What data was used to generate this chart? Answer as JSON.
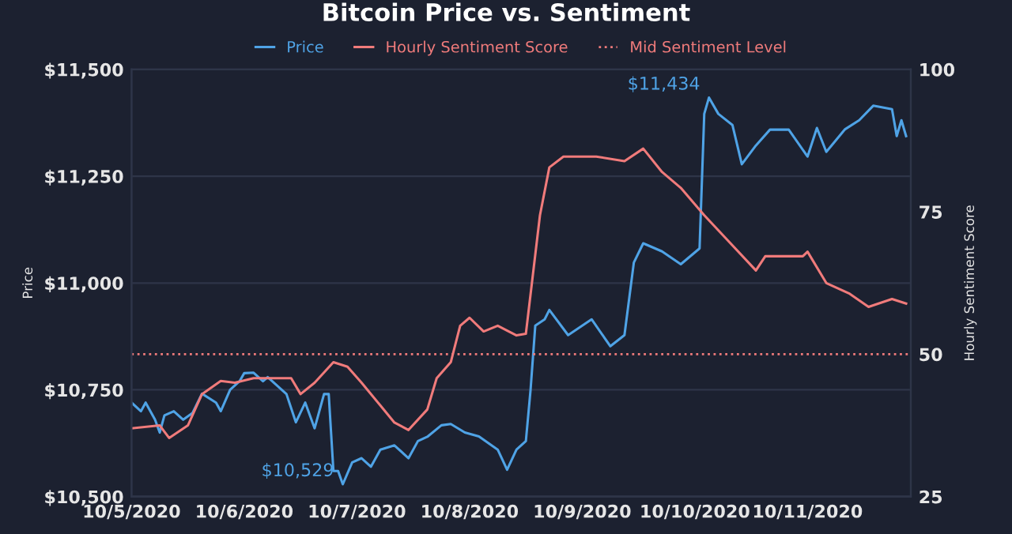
{
  "chart_data": {
    "type": "line",
    "title": "Bitcoin Price vs. Sentiment",
    "ylabel": "Price",
    "y2label": "Hourly Sentiment Score",
    "series": [
      {
        "name": "Price",
        "color": "#4fa3e6",
        "x": [
          "2020-10-05T00:00",
          "2020-10-05T02:00",
          "2020-10-05T03:00",
          "2020-10-05T05:00",
          "2020-10-05T06:00",
          "2020-10-05T07:00",
          "2020-10-05T09:00",
          "2020-10-05T11:00",
          "2020-10-05T13:00",
          "2020-10-05T15:00",
          "2020-10-05T18:00",
          "2020-10-05T19:00",
          "2020-10-05T21:00",
          "2020-10-05T23:00",
          "2020-10-06T00:00",
          "2020-10-06T02:00",
          "2020-10-06T04:00",
          "2020-10-06T05:00",
          "2020-10-06T09:00",
          "2020-10-06T11:00",
          "2020-10-06T13:00",
          "2020-10-06T15:00",
          "2020-10-06T17:00",
          "2020-10-06T18:00",
          "2020-10-06T19:00",
          "2020-10-06T20:00",
          "2020-10-06T21:00",
          "2020-10-06T23:00",
          "2020-10-07T01:00",
          "2020-10-07T03:00",
          "2020-10-07T05:00",
          "2020-10-07T08:00",
          "2020-10-07T11:00",
          "2020-10-07T13:00",
          "2020-10-07T15:00",
          "2020-10-07T18:00",
          "2020-10-07T20:00",
          "2020-10-07T23:00",
          "2020-10-08T02:00",
          "2020-10-08T06:00",
          "2020-10-08T08:00",
          "2020-10-08T10:00",
          "2020-10-08T12:00",
          "2020-10-08T13:00",
          "2020-10-08T14:00",
          "2020-10-08T16:00",
          "2020-10-08T17:00",
          "2020-10-08T21:00",
          "2020-10-09T02:00",
          "2020-10-09T06:00",
          "2020-10-09T09:00",
          "2020-10-09T11:00",
          "2020-10-09T13:00",
          "2020-10-09T17:00",
          "2020-10-09T21:00",
          "2020-10-10T01:00",
          "2020-10-10T02:00",
          "2020-10-10T03:00",
          "2020-10-10T05:00",
          "2020-10-10T08:00",
          "2020-10-10T10:00",
          "2020-10-10T13:00",
          "2020-10-10T16:00",
          "2020-10-10T20:00",
          "2020-10-11T00:00",
          "2020-10-11T02:00",
          "2020-10-11T04:00",
          "2020-10-11T08:00",
          "2020-10-11T11:00",
          "2020-10-11T14:00",
          "2020-10-11T18:00",
          "2020-10-11T19:00",
          "2020-10-11T20:00",
          "2020-10-11T21:00"
        ],
        "values": [
          10720,
          10700,
          10720,
          10680,
          10650,
          10690,
          10700,
          10680,
          10696,
          10741,
          10720,
          10700,
          10750,
          10770,
          10789,
          10790,
          10770,
          10780,
          10740,
          10674,
          10720,
          10660,
          10740,
          10740,
          10560,
          10560,
          10529,
          10580,
          10590,
          10570,
          10610,
          10620,
          10590,
          10630,
          10640,
          10667,
          10670,
          10650,
          10641,
          10610,
          10563,
          10610,
          10630,
          10750,
          10900,
          10915,
          10937,
          10878,
          10915,
          10852,
          10878,
          11048,
          11093,
          11074,
          11044,
          11081,
          11396,
          11434,
          11396,
          11370,
          11278,
          11322,
          11359,
          11359,
          11296,
          11363,
          11307,
          11360,
          11381,
          11415,
          11407,
          11344,
          11381,
          11344
        ]
      },
      {
        "name": "Hourly Sentiment Score",
        "color": "#f07b7b",
        "axis": "y2",
        "x": [
          "2020-10-05T00:00",
          "2020-10-05T06:00",
          "2020-10-05T08:00",
          "2020-10-05T12:00",
          "2020-10-05T15:00",
          "2020-10-05T19:00",
          "2020-10-05T22:00",
          "2020-10-06T02:00",
          "2020-10-06T06:00",
          "2020-10-06T10:00",
          "2020-10-06T12:00",
          "2020-10-06T15:00",
          "2020-10-06T19:00",
          "2020-10-06T22:00",
          "2020-10-07T01:00",
          "2020-10-07T05:00",
          "2020-10-07T08:00",
          "2020-10-07T11:00",
          "2020-10-07T15:00",
          "2020-10-07T17:00",
          "2020-10-07T20:00",
          "2020-10-07T22:00",
          "2020-10-08T00:00",
          "2020-10-08T03:00",
          "2020-10-08T06:00",
          "2020-10-08T10:00",
          "2020-10-08T12:00",
          "2020-10-08T15:00",
          "2020-10-08T17:00",
          "2020-10-08T20:00",
          "2020-10-09T03:00",
          "2020-10-09T09:00",
          "2020-10-09T13:00",
          "2020-10-09T17:00",
          "2020-10-09T21:00",
          "2020-10-10T02:00",
          "2020-10-10T07:00",
          "2020-10-10T13:00",
          "2020-10-10T15:00",
          "2020-10-10T23:00",
          "2020-10-11T00:00",
          "2020-10-11T04:00",
          "2020-10-11T09:00",
          "2020-10-11T13:00",
          "2020-10-11T18:00",
          "2020-10-11T21:00"
        ],
        "values": [
          37,
          37.5,
          35.3,
          37.5,
          43,
          45.3,
          45,
          45.8,
          45.8,
          45.8,
          43,
          45,
          48.6,
          47.8,
          45,
          41,
          38,
          36.7,
          40.3,
          45.8,
          48.6,
          55,
          56.4,
          54,
          55,
          53.3,
          53.6,
          74.4,
          82.8,
          84.7,
          84.7,
          83.9,
          86.1,
          82,
          79.2,
          74.4,
          70,
          64.7,
          67.2,
          67.2,
          68,
          62.5,
          60.6,
          58.3,
          59.7,
          58.9
        ]
      }
    ],
    "ref_lines": [
      {
        "axis": "y2",
        "value": 50,
        "label": "Mid Sentiment Level",
        "color": "#f07b7b",
        "line_style": "dotted"
      }
    ],
    "annotations": [
      {
        "text": "$10,529",
        "x": "2020-10-06T21:00",
        "y": 10529
      },
      {
        "text": "$11,434",
        "x": "2020-10-10T03:00",
        "y": 11434
      }
    ],
    "xlim": [
      "2020-10-05T00:00",
      "2020-10-11T22:00"
    ],
    "xticks": [
      {
        "value": "2020-10-05",
        "label": "10/5/2020"
      },
      {
        "value": "2020-10-06",
        "label": "10/6/2020"
      },
      {
        "value": "2020-10-07",
        "label": "10/7/2020"
      },
      {
        "value": "2020-10-08",
        "label": "10/8/2020"
      },
      {
        "value": "2020-10-09",
        "label": "10/9/2020"
      },
      {
        "value": "2020-10-10",
        "label": "10/10/2020"
      },
      {
        "value": "2020-10-11",
        "label": "10/11/2020"
      }
    ],
    "ylim": [
      10500,
      11500
    ],
    "yticks": [
      {
        "value": 10500,
        "label": "$10,500"
      },
      {
        "value": 10750,
        "label": "$10,750"
      },
      {
        "value": 11000,
        "label": "$11,000"
      },
      {
        "value": 11250,
        "label": "$11,250"
      },
      {
        "value": 11500,
        "label": "$11,500"
      }
    ],
    "y2lim": [
      25,
      100
    ],
    "y2ticks": [
      25,
      50,
      75,
      100
    ],
    "grid": "y",
    "legend": "top",
    "marker": "none",
    "line_style": "solid"
  }
}
